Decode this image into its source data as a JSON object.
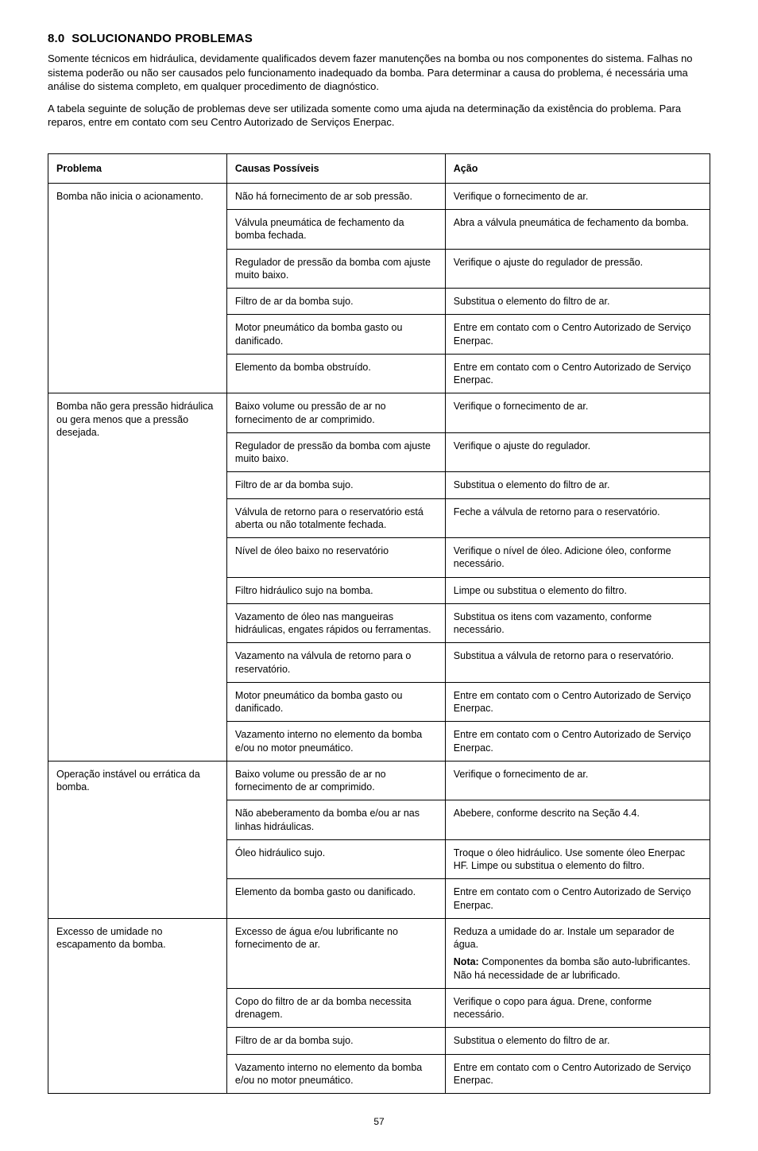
{
  "section_number": "8.0",
  "heading": "SOLUCIONANDO PROBLEMAS",
  "para1": "Somente técnicos em hidráulica, devidamente qualificados devem fazer manutenções na bomba ou nos componentes do sistema. Falhas  no sistema poderão ou não ser causados pelo funcionamento inadequado da bomba. Para determinar a causa do problema, é necessária uma análise do sistema completo, em qualquer procedimento de diagnóstico.",
  "para2": "A tabela seguinte de solução de problemas deve ser utilizada somente como uma ajuda na determinação da existência do problema. Para reparos, entre em contato com seu Centro Autorizado de Serviços Enerpac.",
  "table": {
    "headers": {
      "c1": "Problema",
      "c2": "Causas Possíveis",
      "c3": "Ação"
    },
    "groups": [
      {
        "problem": "Bomba não inicia o acionamento.",
        "rows": [
          {
            "cause": "Não há fornecimento de ar sob pressão.",
            "action": "Verifique o fornecimento de ar."
          },
          {
            "cause": "Válvula pneumática de fechamento da bomba fechada.",
            "action": "Abra a válvula pneumática de fechamento da bomba."
          },
          {
            "cause": "Regulador de pressão da bomba com ajuste muito baixo.",
            "action": "Verifique o ajuste do regulador de pressão."
          },
          {
            "cause": "Filtro de ar da bomba sujo.",
            "action": "Substitua o elemento do filtro de ar."
          },
          {
            "cause": "Motor pneumático da bomba gasto ou danificado.",
            "action": "Entre em contato com o Centro Autorizado de Serviço Enerpac."
          },
          {
            "cause": "Elemento da bomba obstruído.",
            "action": "Entre em contato com o Centro Autorizado de Serviço Enerpac."
          }
        ]
      },
      {
        "problem": "Bomba não gera pressão hidráulica ou gera menos que a pressão desejada.",
        "rows": [
          {
            "cause": "Baixo volume ou pressão de ar no fornecimento de ar comprimido.",
            "action": "Verifique o fornecimento de ar."
          },
          {
            "cause": "Regulador de pressão da bomba com ajuste muito baixo.",
            "action": "Verifique o ajuste do regulador."
          },
          {
            "cause": "Filtro de ar da bomba sujo.",
            "action": "Substitua o elemento do filtro de ar."
          },
          {
            "cause": "Válvula de retorno para o reservatório está aberta ou não totalmente fechada.",
            "action": "Feche a válvula de retorno para o reservatório."
          },
          {
            "cause": "Nível de óleo baixo no reservatório",
            "action": "Verifique o nível de óleo. Adicione óleo, conforme necessário."
          },
          {
            "cause": "Filtro hidráulico sujo na bomba.",
            "action": "Limpe ou substitua o elemento do filtro."
          },
          {
            "cause": "Vazamento de óleo nas mangueiras hidráulicas, engates rápidos ou ferramentas.",
            "action": "Substitua os itens com vazamento, conforme necessário."
          },
          {
            "cause": "Vazamento na válvula de retorno para o reservatório.",
            "action": "Substitua a válvula de retorno para o reservatório."
          },
          {
            "cause": "Motor pneumático da bomba gasto ou danificado.",
            "action": "Entre em contato com o Centro Autorizado de Serviço Enerpac."
          },
          {
            "cause": "Vazamento interno no elemento da bomba e/ou no motor pneumático.",
            "action": "Entre em contato com o Centro Autorizado de Serviço Enerpac."
          }
        ]
      },
      {
        "problem": "Operação instável ou errática da bomba.",
        "rows": [
          {
            "cause": "Baixo volume ou pressão de ar no fornecimento de ar comprimido.",
            "action": "Verifique o fornecimento de ar."
          },
          {
            "cause": "Não abeberamento da bomba e/ou ar nas linhas hidráulicas.",
            "action": "Abebere, conforme descrito na Seção 4.4."
          },
          {
            "cause": "Óleo hidráulico sujo.",
            "action": "Troque o óleo hidráulico. Use somente óleo Enerpac HF. Limpe ou substitua o elemento do filtro."
          },
          {
            "cause": "Elemento da bomba gasto ou danificado.",
            "action": "Entre em contato com o Centro Autorizado de Serviço Enerpac."
          }
        ]
      },
      {
        "problem": "Excesso de umidade no escapamento da bomba.",
        "rows": [
          {
            "cause": "Excesso de água e/ou lubrificante no fornecimento de ar.",
            "action_pre": "Reduza a umidade do ar. Instale um separador de água.",
            "note_prefix": "Nota:",
            "note_text": " Componentes da bomba são auto-lubrificantes. Não há necessidade de ar lubrificado."
          },
          {
            "cause": "Copo do filtro de ar da bomba necessita drenagem.",
            "action": "Verifique o copo para água. Drene, conforme necessário."
          },
          {
            "cause": "Filtro de ar da bomba sujo.",
            "action": "Substitua o elemento do filtro de ar."
          },
          {
            "cause": "Vazamento interno no elemento da bomba e/ou no motor pneumático.",
            "action": "Entre em contato com o Centro Autorizado de Serviço Enerpac."
          }
        ]
      }
    ]
  },
  "page_number": "57"
}
